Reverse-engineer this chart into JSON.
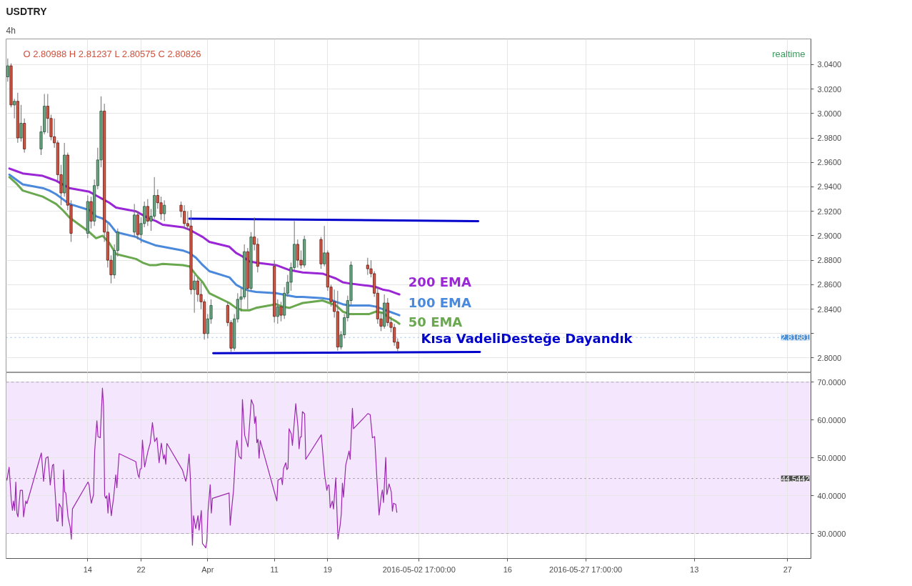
{
  "chart_data": [
    {
      "type": "candlestick",
      "title": "USDTRY",
      "subtitle": "4h",
      "x": [
        "2016-03-02T00:00",
        "2016-03-02T12:00",
        "2016-03-03T00:00",
        "2016-03-03T12:00",
        "2016-03-04T00:00",
        "2016-03-04T12:00",
        "2016-03-07T00:00",
        "2016-03-07T12:00",
        "2016-03-08T00:00",
        "2016-03-08T12:00",
        "2016-03-09T00:00",
        "2016-03-09T12:00",
        "2016-03-10T00:00",
        "2016-03-10T12:00",
        "2016-03-11T00:00",
        "2016-03-11T12:00",
        "2016-03-14T00:00",
        "2016-03-14T12:00",
        "2016-03-15T00:00",
        "2016-03-15T12:00",
        "2016-03-16T00:00",
        "2016-03-16T12:00",
        "2016-03-17T00:00",
        "2016-03-17T12:00",
        "2016-03-18T00:00",
        "2016-03-18T12:00",
        "2016-03-21T00:00",
        "2016-03-21T12:00",
        "2016-03-22T00:00",
        "2016-03-22T12:00",
        "2016-03-23T00:00",
        "2016-03-23T12:00",
        "2016-03-24T00:00",
        "2016-03-24T12:00",
        "2016-03-25T00:00",
        "2016-03-25T12:00",
        "2016-03-28T00:00",
        "2016-03-28T12:00",
        "2016-03-29T00:00",
        "2016-03-29T12:00",
        "2016-03-30T00:00",
        "2016-03-30T12:00",
        "2016-03-31T00:00",
        "2016-03-31T12:00",
        "2016-04-01T00:00",
        "2016-04-01T12:00",
        "2016-04-04T00:00",
        "2016-04-04T12:00",
        "2016-04-05T00:00",
        "2016-04-05T12:00",
        "2016-04-06T00:00",
        "2016-04-06T12:00",
        "2016-04-07T00:00",
        "2016-04-07T12:00",
        "2016-04-08T00:00",
        "2016-04-08T12:00",
        "2016-04-11T00:00",
        "2016-04-11T12:00",
        "2016-04-12T00:00",
        "2016-04-12T12:00",
        "2016-04-13T00:00",
        "2016-04-13T12:00",
        "2016-04-14T00:00",
        "2016-04-14T12:00",
        "2016-04-15T00:00",
        "2016-04-15T12:00",
        "2016-04-18T00:00",
        "2016-04-18T12:00",
        "2016-04-19T00:00",
        "2016-04-19T12:00",
        "2016-04-20T00:00",
        "2016-04-20T12:00",
        "2016-04-21T00:00",
        "2016-04-21T12:00",
        "2016-04-22T00:00",
        "2016-04-22T12:00",
        "2016-04-25T00:00",
        "2016-04-25T12:00",
        "2016-04-26T00:00",
        "2016-04-26T12:00",
        "2016-04-27T00:00",
        "2016-04-27T12:00",
        "2016-04-28T00:00",
        "2016-04-28T12:00",
        "2016-04-29T00:00",
        "2016-04-29T12:00"
      ],
      "ohlc": [
        [
          3.03,
          3.045,
          3.026,
          3.039
        ],
        [
          3.039,
          3.041,
          3.005,
          3.007
        ],
        [
          3.007,
          3.012,
          2.996,
          3.01
        ],
        [
          3.01,
          3.017,
          2.976,
          2.98
        ],
        [
          2.98,
          3.007,
          2.977,
          2.992
        ],
        [
          2.992,
          2.996,
          2.968,
          2.971
        ],
        [
          2.971,
          2.99,
          2.966,
          2.985
        ],
        [
          2.985,
          3.016,
          2.983,
          3.006
        ],
        [
          3.006,
          3.016,
          2.984,
          2.996
        ],
        [
          2.996,
          2.999,
          2.978,
          2.981
        ],
        [
          2.981,
          2.996,
          2.972,
          2.976
        ],
        [
          2.976,
          2.978,
          2.945,
          2.95
        ],
        [
          2.95,
          2.958,
          2.925,
          2.935
        ],
        [
          2.935,
          2.976,
          2.932,
          2.966
        ],
        [
          2.966,
          2.968,
          2.921,
          2.925
        ],
        [
          2.925,
          2.929,
          2.895,
          2.902
        ],
        [
          2.902,
          2.933,
          2.898,
          2.928
        ],
        [
          2.928,
          2.932,
          2.906,
          2.912
        ],
        [
          2.912,
          2.946,
          2.908,
          2.941
        ],
        [
          2.941,
          2.972,
          2.938,
          2.962
        ],
        [
          2.962,
          3.014,
          2.956,
          3.002
        ],
        [
          3.002,
          3.008,
          2.895,
          2.903
        ],
        [
          2.903,
          2.91,
          2.874,
          2.88
        ],
        [
          2.88,
          2.884,
          2.861,
          2.868
        ],
        [
          2.868,
          2.893,
          2.865,
          2.888
        ],
        [
          2.888,
          2.906,
          2.883,
          2.903
        ],
        [
          2.903,
          2.926,
          2.899,
          2.917
        ],
        [
          2.917,
          2.92,
          2.897,
          2.901
        ],
        [
          2.901,
          2.915,
          2.894,
          2.91
        ],
        [
          2.91,
          2.928,
          2.907,
          2.924
        ],
        [
          2.924,
          2.93,
          2.908,
          2.912
        ],
        [
          2.912,
          2.922,
          2.904,
          2.916
        ],
        [
          2.916,
          2.948,
          2.914,
          2.933
        ],
        [
          2.933,
          2.938,
          2.922,
          2.927
        ],
        [
          2.927,
          2.932,
          2.913,
          2.918
        ],
        [
          2.918,
          2.929,
          2.912,
          2.925
        ],
        [
          2.925,
          2.928,
          2.915,
          2.92
        ],
        [
          2.92,
          2.925,
          2.906,
          2.91
        ],
        [
          2.91,
          2.92,
          2.905,
          2.908
        ],
        [
          2.908,
          2.921,
          2.852,
          2.856
        ],
        [
          2.856,
          2.868,
          2.837,
          2.863
        ],
        [
          2.863,
          2.866,
          2.846,
          2.852
        ],
        [
          2.852,
          2.862,
          2.84,
          2.846
        ],
        [
          2.846,
          2.848,
          2.815,
          2.82
        ],
        [
          2.82,
          2.836,
          2.816,
          2.832
        ],
        [
          2.832,
          2.848,
          2.828,
          2.843
        ],
        [
          2.843,
          2.846,
          2.826,
          2.829
        ],
        [
          2.829,
          2.831,
          2.805,
          2.808
        ],
        [
          2.808,
          2.836,
          2.806,
          2.832
        ],
        [
          2.832,
          2.853,
          2.829,
          2.848
        ],
        [
          2.848,
          2.858,
          2.838,
          2.85
        ],
        [
          2.85,
          2.893,
          2.848,
          2.887
        ],
        [
          2.887,
          2.89,
          2.84,
          2.857
        ],
        [
          2.857,
          2.903,
          2.855,
          2.899
        ],
        [
          2.899,
          2.915,
          2.888,
          2.893
        ],
        [
          2.893,
          2.898,
          2.87,
          2.875
        ],
        [
          2.875,
          2.88,
          2.829,
          2.834
        ],
        [
          2.834,
          2.848,
          2.828,
          2.842
        ],
        [
          2.842,
          2.846,
          2.83,
          2.835
        ],
        [
          2.835,
          2.858,
          2.832,
          2.853
        ],
        [
          2.853,
          2.868,
          2.85,
          2.862
        ],
        [
          2.862,
          2.878,
          2.855,
          2.874
        ],
        [
          2.874,
          2.912,
          2.872,
          2.893
        ],
        [
          2.893,
          2.897,
          2.874,
          2.88
        ],
        [
          2.88,
          2.888,
          2.873,
          2.876
        ],
        [
          2.876,
          2.9,
          2.874,
          2.897
        ],
        [
          2.897,
          2.899,
          2.873,
          2.877
        ],
        [
          2.877,
          2.908,
          2.875,
          2.886
        ],
        [
          2.886,
          2.888,
          2.855,
          2.858
        ],
        [
          2.858,
          2.86,
          2.842,
          2.846
        ],
        [
          2.846,
          2.856,
          2.833,
          2.838
        ],
        [
          2.838,
          2.855,
          2.806,
          2.809
        ],
        [
          2.809,
          2.822,
          2.807,
          2.819
        ],
        [
          2.819,
          2.836,
          2.816,
          2.833
        ],
        [
          2.833,
          2.851,
          2.83,
          2.847
        ],
        [
          2.847,
          2.879,
          2.843,
          2.876
        ],
        [
          2.876,
          2.882,
          2.868,
          2.873
        ],
        [
          2.873,
          2.88,
          2.866,
          2.869
        ],
        [
          2.869,
          2.871,
          2.85,
          2.853
        ],
        [
          2.853,
          2.858,
          2.828,
          2.832
        ],
        [
          2.832,
          2.838,
          2.822,
          2.826
        ],
        [
          2.826,
          2.852,
          2.824,
          2.845
        ],
        [
          2.845,
          2.849,
          2.826,
          2.829
        ],
        [
          2.829,
          2.834,
          2.821,
          2.825
        ],
        [
          2.825,
          2.828,
          2.81,
          2.813
        ],
        [
          2.813,
          2.816,
          2.805,
          2.808
        ]
      ],
      "series": [
        {
          "type": "line",
          "name": "200 EMA",
          "color": "#9a26d6",
          "x": [
            "2016-03-02T06:00",
            "2016-03-03T06:00",
            "2016-03-04T06:00",
            "2016-03-07T06:00",
            "2016-03-08T06:00",
            "2016-03-09T06:00",
            "2016-03-10T06:00",
            "2016-03-11T06:00",
            "2016-03-14T06:00",
            "2016-03-15T06:00",
            "2016-03-16T06:00",
            "2016-03-17T06:00",
            "2016-03-18T06:00",
            "2016-03-21T06:00",
            "2016-03-22T06:00",
            "2016-03-23T06:00",
            "2016-03-24T06:00",
            "2016-03-25T06:00",
            "2016-03-28T06:00",
            "2016-03-29T06:00",
            "2016-03-30T06:00",
            "2016-03-31T06:00",
            "2016-04-01T06:00",
            "2016-04-04T06:00",
            "2016-04-05T06:00",
            "2016-04-06T06:00",
            "2016-04-07T06:00",
            "2016-04-08T06:00",
            "2016-04-11T06:00",
            "2016-04-12T06:00",
            "2016-04-13T06:00",
            "2016-04-14T06:00",
            "2016-04-15T06:00",
            "2016-04-18T06:00",
            "2016-04-19T06:00",
            "2016-04-20T06:00",
            "2016-04-21T06:00",
            "2016-04-22T06:00",
            "2016-04-25T06:00",
            "2016-04-26T06:00",
            "2016-04-27T06:00",
            "2016-04-28T06:00",
            "2016-04-29T06:00",
            "2016-04-29T18:00"
          ],
          "values": [
            2.955,
            2.953,
            2.951,
            2.949,
            2.947,
            2.945,
            2.942,
            2.939,
            2.936,
            2.933,
            2.93,
            2.927,
            2.923,
            2.92,
            2.917,
            2.914,
            2.912,
            2.909,
            2.907,
            2.905,
            2.902,
            2.899,
            2.895,
            2.891,
            2.886,
            2.883,
            2.879,
            2.878,
            2.876,
            2.874,
            2.872,
            2.871,
            2.87,
            2.869,
            2.867,
            2.865,
            2.862,
            2.861,
            2.859,
            2.858,
            2.856,
            2.855,
            2.853,
            2.852
          ]
        },
        {
          "type": "line",
          "name": "100 EMA",
          "color": "#4a89dc",
          "x": [
            "2016-03-02T06:00",
            "2016-03-03T06:00",
            "2016-03-04T06:00",
            "2016-03-07T06:00",
            "2016-03-08T06:00",
            "2016-03-09T06:00",
            "2016-03-10T06:00",
            "2016-03-11T06:00",
            "2016-03-14T06:00",
            "2016-03-15T06:00",
            "2016-03-16T06:00",
            "2016-03-17T06:00",
            "2016-03-18T06:00",
            "2016-03-21T06:00",
            "2016-03-22T06:00",
            "2016-03-23T06:00",
            "2016-03-24T06:00",
            "2016-03-25T06:00",
            "2016-03-28T06:00",
            "2016-03-29T06:00",
            "2016-03-30T06:00",
            "2016-03-31T06:00",
            "2016-04-01T06:00",
            "2016-04-04T06:00",
            "2016-04-05T06:00",
            "2016-04-06T06:00",
            "2016-04-07T06:00",
            "2016-04-08T06:00",
            "2016-04-11T06:00",
            "2016-04-12T06:00",
            "2016-04-13T06:00",
            "2016-04-14T06:00",
            "2016-04-15T06:00",
            "2016-04-18T06:00",
            "2016-04-19T06:00",
            "2016-04-20T06:00",
            "2016-04-21T06:00",
            "2016-04-22T06:00",
            "2016-04-25T06:00",
            "2016-04-26T06:00",
            "2016-04-27T06:00",
            "2016-04-28T06:00",
            "2016-04-29T06:00",
            "2016-04-29T18:00"
          ],
          "values": [
            2.95,
            2.946,
            2.942,
            2.939,
            2.937,
            2.934,
            2.93,
            2.926,
            2.921,
            2.916,
            2.914,
            2.91,
            2.903,
            2.899,
            2.896,
            2.894,
            2.892,
            2.891,
            2.888,
            2.886,
            2.882,
            2.876,
            2.871,
            2.866,
            2.86,
            2.857,
            2.855,
            2.854,
            2.853,
            2.852,
            2.851,
            2.85,
            2.85,
            2.849,
            2.848,
            2.846,
            2.844,
            2.843,
            2.843,
            2.842,
            2.84,
            2.838,
            2.836,
            2.835
          ]
        },
        {
          "type": "line",
          "name": "50 EMA",
          "color": "#6aa84f",
          "x": [
            "2016-03-02T06:00",
            "2016-03-03T06:00",
            "2016-03-04T06:00",
            "2016-03-07T06:00",
            "2016-03-08T06:00",
            "2016-03-09T06:00",
            "2016-03-10T06:00",
            "2016-03-11T06:00",
            "2016-03-14T06:00",
            "2016-03-15T06:00",
            "2016-03-16T06:00",
            "2016-03-17T06:00",
            "2016-03-18T06:00",
            "2016-03-21T06:00",
            "2016-03-22T06:00",
            "2016-03-23T06:00",
            "2016-03-24T06:00",
            "2016-03-25T06:00",
            "2016-03-28T06:00",
            "2016-03-29T06:00",
            "2016-03-30T06:00",
            "2016-03-31T06:00",
            "2016-04-01T06:00",
            "2016-04-04T06:00",
            "2016-04-05T06:00",
            "2016-04-06T06:00",
            "2016-04-07T06:00",
            "2016-04-08T06:00",
            "2016-04-11T06:00",
            "2016-04-12T06:00",
            "2016-04-13T06:00",
            "2016-04-14T06:00",
            "2016-04-15T06:00",
            "2016-04-18T06:00",
            "2016-04-19T06:00",
            "2016-04-20T06:00",
            "2016-04-21T06:00",
            "2016-04-22T06:00",
            "2016-04-25T06:00",
            "2016-04-26T06:00",
            "2016-04-27T06:00",
            "2016-04-28T06:00",
            "2016-04-29T06:00",
            "2016-04-29T18:00"
          ],
          "values": [
            2.948,
            2.943,
            2.937,
            2.932,
            2.929,
            2.926,
            2.921,
            2.915,
            2.903,
            2.898,
            2.9,
            2.894,
            2.885,
            2.881,
            2.878,
            2.876,
            2.876,
            2.877,
            2.876,
            2.875,
            2.868,
            2.862,
            2.853,
            2.845,
            2.841,
            2.839,
            2.839,
            2.841,
            2.844,
            2.842,
            2.841,
            2.843,
            2.845,
            2.847,
            2.845,
            2.843,
            2.838,
            2.836,
            2.836,
            2.838,
            2.837,
            2.833,
            2.83,
            2.828
          ]
        },
        {
          "type": "line",
          "color": "#0000cc",
          "x": [
            "2016-03-29T06:00",
            "2016-05-11T14:00"
          ],
          "values": [
            2.914,
            2.912
          ]
        },
        {
          "type": "line",
          "color": "#0000cc",
          "x": [
            "2016-04-01T20:00",
            "2016-05-11T20:00"
          ],
          "values": [
            2.804,
            2.805
          ]
        }
      ],
      "xlim": [
        "2016-03-01T18:00",
        "2016-06-30T12:00"
      ],
      "xticks": [
        {
          "value": "2016-03-14",
          "label": null
        },
        {
          "value": "2016-03-22",
          "label": null
        },
        {
          "value": "2016-04-01",
          "label": null
        },
        {
          "value": "2016-04-11",
          "label": null
        },
        {
          "value": "2016-04-19",
          "label": null
        },
        {
          "value": "2016-05-02T17:00",
          "label": null
        },
        {
          "value": "2016-05-16",
          "label": null
        },
        {
          "value": "2016-05-27T17:00",
          "label": null
        },
        {
          "value": "2016-06-13",
          "label": null
        },
        {
          "value": "2016-06-27",
          "label": null
        }
      ],
      "ylim": [
        2.788,
        3.061
      ],
      "yticks": [
        {
          "value": 2.8,
          "label": "2.8000"
        },
        {
          "value": 2.82,
          "label": null
        },
        {
          "value": 2.84,
          "label": "2.8400"
        },
        {
          "value": 2.86,
          "label": "2.8600"
        },
        {
          "value": 2.88,
          "label": "2.8800"
        },
        {
          "value": 2.9,
          "label": "2.9000"
        },
        {
          "value": 2.92,
          "label": "2.9200"
        },
        {
          "value": 2.94,
          "label": "2.9400"
        },
        {
          "value": 2.96,
          "label": "2.9600"
        },
        {
          "value": 2.98,
          "label": "2.9800"
        },
        {
          "value": 3.0,
          "label": "3.0000"
        },
        {
          "value": 3.02,
          "label": "3.0200"
        },
        {
          "value": 3.04,
          "label": "3.0400"
        }
      ],
      "tick_labels": "y",
      "grid": true,
      "ref_lines": [
        {
          "axis": "y",
          "value": 2.81681,
          "label": "2.81681",
          "color": "#4a90d9",
          "line_style": "dotted"
        }
      ],
      "annotations": [
        "O 2.80988 H 2.81237 L 2.80575 C 2.80826",
        "realtime",
        {
          "text": "Kısa VadeliDesteğe Dayandık",
          "x": "2016-05-03",
          "y": 2.805
        }
      ]
    },
    {
      "type": "line",
      "series": [
        {
          "color": "#9c27b0",
          "x": [
            "2016-03-01T21:00",
            "2016-03-02T05:00",
            "2016-03-02T13:00",
            "2016-03-02T17:00",
            "2016-03-02T21:00",
            "2016-03-03T01:00",
            "2016-03-03T05:00",
            "2016-03-03T09:00",
            "2016-03-03T13:00",
            "2016-03-03T21:00",
            "2016-03-04T05:00",
            "2016-03-04T09:00",
            "2016-03-04T17:00",
            "2016-03-04T21:00",
            "2016-03-07T01:00",
            "2016-03-07T09:00",
            "2016-03-07T17:00",
            "2016-03-08T01:00",
            "2016-03-08T09:00",
            "2016-03-08T17:00",
            "2016-03-08T21:00",
            "2016-03-09T01:00",
            "2016-03-09T09:00",
            "2016-03-09T13:00",
            "2016-03-09T17:00",
            "2016-03-10T01:00",
            "2016-03-10T05:00",
            "2016-03-10T09:00",
            "2016-03-10T13:00",
            "2016-03-10T17:00",
            "2016-03-11T01:00",
            "2016-03-11T09:00",
            "2016-03-11T13:00",
            "2016-03-11T17:00",
            "2016-03-14T01:00",
            "2016-03-14T05:00",
            "2016-03-14T09:00",
            "2016-03-14T13:00",
            "2016-03-14T21:00",
            "2016-03-15T01:00",
            "2016-03-15T09:00",
            "2016-03-15T13:00",
            "2016-03-15T21:00",
            "2016-03-16T05:00",
            "2016-03-16T09:00",
            "2016-03-16T13:00",
            "2016-03-16T17:00",
            "2016-03-16T21:00",
            "2016-03-17T01:00",
            "2016-03-17T05:00",
            "2016-03-17T13:00",
            "2016-03-17T17:00",
            "2016-03-17T21:00",
            "2016-03-18T05:00",
            "2016-03-18T09:00",
            "2016-03-18T13:00",
            "2016-03-18T17:00",
            "2016-03-21T05:00",
            "2016-03-21T13:00",
            "2016-03-21T17:00",
            "2016-03-21T21:00",
            "2016-03-22T01:00",
            "2016-03-22T05:00",
            "2016-03-22T09:00",
            "2016-03-22T13:00",
            "2016-03-23T01:00",
            "2016-03-23T09:00",
            "2016-03-23T17:00",
            "2016-03-24T01:00",
            "2016-03-24T09:00",
            "2016-03-24T17:00",
            "2016-03-25T01:00",
            "2016-03-25T09:00",
            "2016-03-25T13:00",
            "2016-03-25T17:00",
            "2016-03-25T21:00",
            "2016-03-28T05:00",
            "2016-03-28T17:00",
            "2016-03-28T21:00",
            "2016-03-29T05:00",
            "2016-03-29T09:00",
            "2016-03-29T17:00",
            "2016-03-29T21:00",
            "2016-03-30T05:00",
            "2016-03-30T13:00",
            "2016-03-30T17:00",
            "2016-03-31T01:00",
            "2016-03-31T05:00",
            "2016-03-31T17:00",
            "2016-03-31T21:00",
            "2016-04-01T01:00",
            "2016-04-01T09:00",
            "2016-04-01T13:00",
            "2016-04-01T17:00",
            "2016-04-04T05:00",
            "2016-04-04T09:00",
            "2016-04-04T13:00",
            "2016-04-04T21:00",
            "2016-04-05T05:00",
            "2016-04-05T09:00",
            "2016-04-05T17:00",
            "2016-04-06T01:00",
            "2016-04-06T05:00",
            "2016-04-06T13:00",
            "2016-04-07T01:00",
            "2016-04-07T13:00",
            "2016-04-07T21:00",
            "2016-04-08T01:00",
            "2016-04-08T05:00",
            "2016-04-08T09:00",
            "2016-04-08T13:00",
            "2016-04-08T17:00",
            "2016-04-08T21:00",
            "2016-04-11T09:00",
            "2016-04-11T13:00",
            "2016-04-12T01:00",
            "2016-04-12T05:00",
            "2016-04-12T09:00",
            "2016-04-12T17:00",
            "2016-04-12T21:00",
            "2016-04-13T01:00",
            "2016-04-13T05:00",
            "2016-04-13T13:00",
            "2016-04-13T17:00",
            "2016-04-14T05:00",
            "2016-04-14T13:00",
            "2016-04-14T17:00",
            "2016-04-14T21:00",
            "2016-04-15T01:00",
            "2016-04-15T05:00",
            "2016-04-15T13:00",
            "2016-04-15T17:00",
            "2016-04-18T01:00",
            "2016-04-18T13:00",
            "2016-04-18T21:00",
            "2016-04-19T01:00",
            "2016-04-19T05:00",
            "2016-04-19T09:00",
            "2016-04-19T17:00",
            "2016-04-19T21:00",
            "2016-04-20T05:00",
            "2016-04-20T13:00",
            "2016-04-20T21:00",
            "2016-04-21T01:00",
            "2016-04-21T05:00",
            "2016-04-21T09:00",
            "2016-04-21T17:00",
            "2016-04-22T05:00",
            "2016-04-22T09:00",
            "2016-04-22T17:00",
            "2016-04-22T21:00",
            "2016-04-25T01:00",
            "2016-04-25T09:00",
            "2016-04-25T13:00",
            "2016-04-25T17:00",
            "2016-04-26T01:00",
            "2016-04-26T09:00",
            "2016-04-26T17:00",
            "2016-04-27T01:00",
            "2016-04-27T05:00",
            "2016-04-27T09:00",
            "2016-04-27T17:00",
            "2016-04-27T21:00",
            "2016-04-28T05:00",
            "2016-04-28T13:00",
            "2016-04-28T17:00",
            "2016-04-28T21:00",
            "2016-04-29T05:00",
            "2016-04-29T09:00"
          ],
          "values": [
            44.1,
            47.5,
            38.6,
            36.1,
            38.6,
            36.1,
            43.6,
            35.4,
            34.4,
            41.4,
            41.4,
            34.4,
            38.6,
            37.9,
            51.3,
            43.8,
            49.9,
            50.3,
            42.8,
            48.0,
            48.3,
            42.8,
            33.3,
            33.3,
            37.9,
            36.8,
            32.0,
            46.8,
            41.0,
            40.7,
            34.4,
            31.6,
            28.5,
            36.5,
            43.6,
            42.8,
            40.0,
            38.0,
            40.3,
            51.8,
            59.8,
            55.6,
            55.3,
            68.4,
            63.7,
            40.0,
            39.3,
            40.0,
            35.4,
            40.7,
            34.7,
            37.2,
            39.3,
            45.5,
            42.1,
            46.9,
            51.1,
            49.0,
            45.5,
            44.8,
            47.1,
            47.1,
            54.7,
            51.1,
            47.6,
            51.8,
            53.9,
            59.3,
            54.3,
            55.3,
            48.7,
            53.9,
            49.7,
            50.8,
            48.3,
            53.8,
            46.8,
            43.8,
            45.2,
            51.0,
            45.5,
            26.9,
            34.7,
            31.3,
            34.7,
            30.9,
            36.1,
            27.4,
            26.2,
            28.1,
            35.8,
            42.9,
            35.4,
            39.3,
            40.7,
            32.2,
            35.6,
            41.4,
            52.2,
            54.6,
            50.4,
            49.7,
            65.4,
            56.0,
            52.9,
            65.4,
            63.8,
            59.1,
            60.9,
            54.0,
            54.9,
            49.9,
            54.6,
            38.6,
            44.1,
            44.7,
            42.9,
            47.1,
            48.7,
            46.9,
            47.3,
            57.7,
            56.3,
            53.3,
            64.3,
            58.1,
            52.4,
            55.5,
            55.5,
            62.2,
            61.6,
            49.6,
            56.1,
            45.5,
            41.4,
            42.8,
            42.8,
            36.8,
            38.6,
            36.5,
            44.7,
            28.5,
            32.3,
            35.2,
            43.3,
            39.6,
            48.1,
            51.8,
            49.6,
            63.1,
            57.7,
            61.7,
            61.4,
            58.4,
            55.3,
            55.6,
            44.8,
            34.9,
            40.0,
            41.5,
            38.2,
            50.1,
            40.3,
            43.1,
            41.0,
            35.9,
            38.0,
            37.7,
            35.6
          ]
        }
      ],
      "xlim": [
        "2016-03-01T18:00",
        "2016-06-30T12:00"
      ],
      "xticks": [
        {
          "value": "2016-03-14",
          "label": "14"
        },
        {
          "value": "2016-03-22",
          "label": "22"
        },
        {
          "value": "2016-04-01",
          "label": "Apr"
        },
        {
          "value": "2016-04-11",
          "label": "11"
        },
        {
          "value": "2016-04-19",
          "label": "19"
        },
        {
          "value": "2016-05-02T17:00",
          "label": "2016-05-02 17:00:00"
        },
        {
          "value": "2016-05-16",
          "label": "16"
        },
        {
          "value": "2016-05-27T17:00",
          "label": "2016-05-27 17:00:00"
        },
        {
          "value": "2016-06-13",
          "label": "13"
        },
        {
          "value": "2016-06-27",
          "label": "27"
        }
      ],
      "ylim": [
        23.4,
        72.5
      ],
      "yticks": [
        {
          "value": 30,
          "label": "30.0000"
        },
        {
          "value": 40,
          "label": "40.0000"
        },
        {
          "value": 50,
          "label": "50.0000"
        },
        {
          "value": 60,
          "label": "60.0000"
        },
        {
          "value": 70,
          "label": "70.0000"
        }
      ],
      "grid": true,
      "bands": [
        {
          "axis": "y",
          "from": 30,
          "to": 70,
          "color": "#f4e6fc"
        }
      ],
      "ref_lines": [
        {
          "axis": "y",
          "value": 44.5442,
          "label": "44.5442",
          "color": "#4d4d4d",
          "line_style": "dotted"
        }
      ]
    }
  ]
}
